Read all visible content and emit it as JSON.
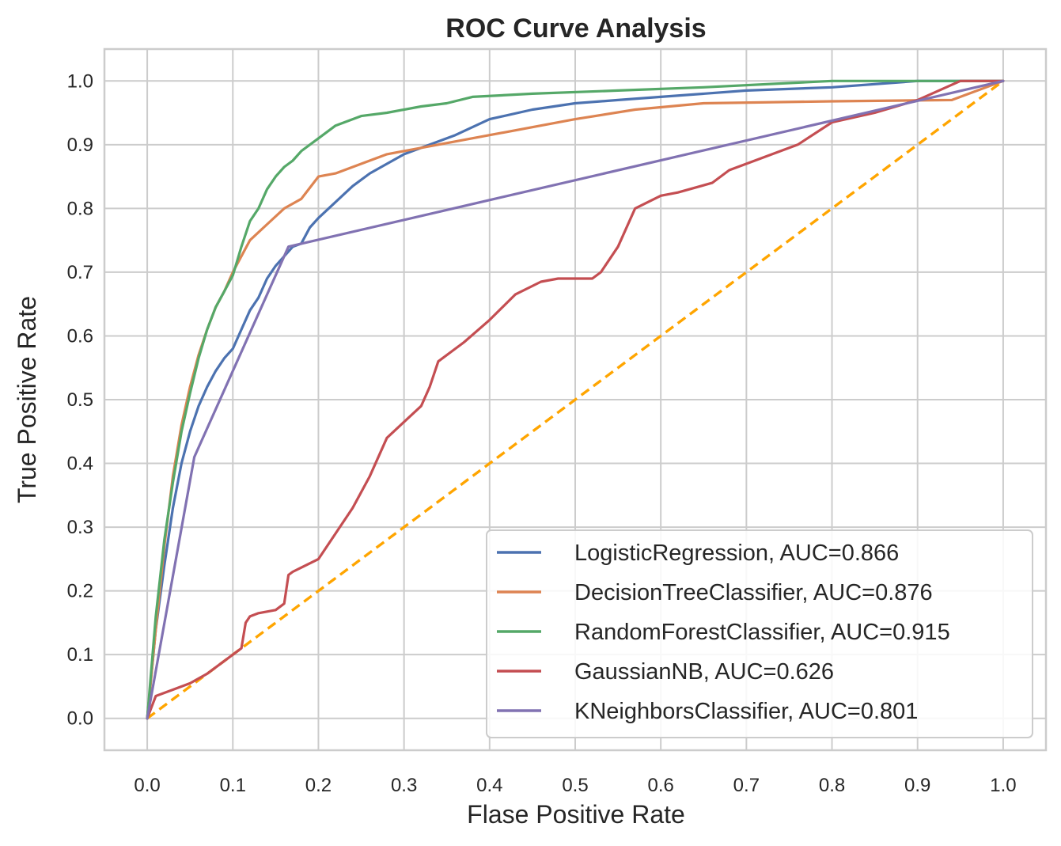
{
  "chart_data": {
    "type": "line",
    "title": "ROC Curve Analysis",
    "xlabel": "Flase Positive Rate",
    "ylabel": "True Positive Rate",
    "xlim": [
      -0.05,
      1.05
    ],
    "ylim": [
      -0.05,
      1.05
    ],
    "xticks": [
      "0.0",
      "0.1",
      "0.2",
      "0.3",
      "0.4",
      "0.5",
      "0.6",
      "0.7",
      "0.8",
      "0.9",
      "1.0"
    ],
    "yticks": [
      "0.0",
      "0.1",
      "0.2",
      "0.3",
      "0.4",
      "0.5",
      "0.6",
      "0.7",
      "0.8",
      "0.9",
      "1.0"
    ],
    "grid": true,
    "legend_position": "lower-right",
    "diagonal": {
      "x": [
        0,
        1
      ],
      "y": [
        0,
        1
      ],
      "color": "#ffa500",
      "style": "dashed"
    },
    "series": [
      {
        "name": "LogisticRegression, AUC=0.866",
        "color": "#4c72b0",
        "x": [
          0,
          0.01,
          0.02,
          0.03,
          0.04,
          0.05,
          0.06,
          0.07,
          0.08,
          0.09,
          0.1,
          0.11,
          0.12,
          0.13,
          0.14,
          0.15,
          0.16,
          0.17,
          0.18,
          0.19,
          0.2,
          0.22,
          0.24,
          0.26,
          0.28,
          0.3,
          0.33,
          0.36,
          0.4,
          0.45,
          0.5,
          0.55,
          0.6,
          0.7,
          0.8,
          0.9,
          1.0
        ],
        "y": [
          0,
          0.14,
          0.24,
          0.33,
          0.4,
          0.45,
          0.49,
          0.52,
          0.545,
          0.565,
          0.58,
          0.61,
          0.64,
          0.66,
          0.69,
          0.71,
          0.725,
          0.74,
          0.745,
          0.77,
          0.785,
          0.81,
          0.835,
          0.855,
          0.87,
          0.885,
          0.9,
          0.915,
          0.94,
          0.955,
          0.965,
          0.97,
          0.975,
          0.985,
          0.99,
          1.0,
          1.0
        ]
      },
      {
        "name": "DecisionTreeClassifier, AUC=0.876",
        "color": "#dd8452",
        "x": [
          0,
          0.01,
          0.02,
          0.03,
          0.04,
          0.05,
          0.06,
          0.07,
          0.08,
          0.09,
          0.1,
          0.12,
          0.14,
          0.16,
          0.18,
          0.2,
          0.22,
          0.25,
          0.28,
          0.32,
          0.4,
          0.5,
          0.57,
          0.65,
          0.8,
          0.94,
          1.0
        ],
        "y": [
          0,
          0.14,
          0.27,
          0.38,
          0.46,
          0.52,
          0.57,
          0.61,
          0.645,
          0.67,
          0.7,
          0.75,
          0.775,
          0.8,
          0.815,
          0.85,
          0.855,
          0.87,
          0.885,
          0.895,
          0.915,
          0.94,
          0.955,
          0.965,
          0.968,
          0.97,
          1.0
        ]
      },
      {
        "name": "RandomForestClassifier, AUC=0.915",
        "color": "#55a868",
        "x": [
          0,
          0.01,
          0.02,
          0.03,
          0.04,
          0.05,
          0.06,
          0.07,
          0.08,
          0.09,
          0.1,
          0.11,
          0.12,
          0.13,
          0.14,
          0.15,
          0.16,
          0.17,
          0.18,
          0.2,
          0.22,
          0.25,
          0.28,
          0.32,
          0.35,
          0.38,
          0.45,
          0.55,
          0.65,
          0.8,
          1.0
        ],
        "y": [
          0,
          0.16,
          0.28,
          0.37,
          0.45,
          0.51,
          0.565,
          0.61,
          0.645,
          0.67,
          0.695,
          0.74,
          0.78,
          0.8,
          0.83,
          0.85,
          0.865,
          0.875,
          0.89,
          0.91,
          0.93,
          0.945,
          0.95,
          0.96,
          0.965,
          0.975,
          0.98,
          0.985,
          0.99,
          1.0,
          1.0
        ]
      },
      {
        "name": "GaussianNB, AUC=0.626",
        "color": "#c44e52",
        "x": [
          0,
          0.01,
          0.03,
          0.05,
          0.07,
          0.09,
          0.1,
          0.11,
          0.115,
          0.12,
          0.13,
          0.15,
          0.16,
          0.165,
          0.17,
          0.2,
          0.22,
          0.24,
          0.26,
          0.28,
          0.3,
          0.32,
          0.33,
          0.34,
          0.355,
          0.37,
          0.4,
          0.43,
          0.46,
          0.48,
          0.52,
          0.53,
          0.55,
          0.57,
          0.6,
          0.62,
          0.66,
          0.68,
          0.72,
          0.76,
          0.8,
          0.85,
          0.9,
          0.95,
          1.0
        ],
        "y": [
          0,
          0.035,
          0.045,
          0.055,
          0.07,
          0.09,
          0.1,
          0.11,
          0.15,
          0.16,
          0.165,
          0.17,
          0.18,
          0.225,
          0.23,
          0.25,
          0.29,
          0.33,
          0.38,
          0.44,
          0.465,
          0.49,
          0.52,
          0.56,
          0.575,
          0.59,
          0.625,
          0.665,
          0.685,
          0.69,
          0.69,
          0.7,
          0.74,
          0.8,
          0.82,
          0.825,
          0.84,
          0.86,
          0.88,
          0.9,
          0.935,
          0.95,
          0.97,
          1.0,
          1.0
        ]
      },
      {
        "name": "KNeighborsClassifier, AUC=0.801",
        "color": "#8172b2",
        "x": [
          0,
          0.055,
          0.165,
          1.0
        ],
        "y": [
          0,
          0.41,
          0.74,
          1.0
        ]
      }
    ]
  }
}
